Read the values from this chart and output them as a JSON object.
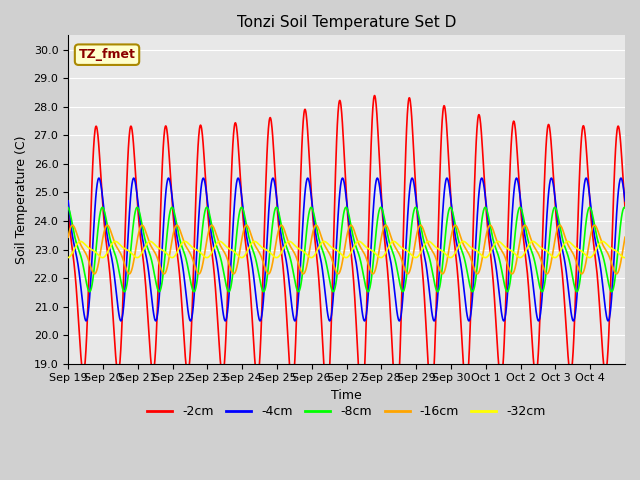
{
  "title": "Tonzi Soil Temperature Set D",
  "xlabel": "Time",
  "ylabel": "Soil Temperature (C)",
  "ylim": [
    19.0,
    30.5
  ],
  "yticks": [
    19.0,
    20.0,
    21.0,
    22.0,
    23.0,
    24.0,
    25.0,
    26.0,
    27.0,
    28.0,
    29.0,
    30.0
  ],
  "fig_bg_color": "#d0d0d0",
  "plot_bg_color": "#e8e8e8",
  "series_colors": [
    "red",
    "blue",
    "lime",
    "orange",
    "yellow"
  ],
  "series_labels": [
    "-2cm",
    "-4cm",
    "-8cm",
    "-16cm",
    "-32cm"
  ],
  "annotation_text": "TZ_fmet",
  "annotation_bg": "#ffffcc",
  "annotation_border": "#aa8800",
  "n_days": 16,
  "mean_temp": 23.0,
  "amps": [
    3.8,
    2.2,
    1.3,
    0.75,
    0.25
  ],
  "phase_shifts_days": [
    0.0,
    0.08,
    0.18,
    0.32,
    0.55
  ],
  "trend_slope": 0.0,
  "tick_labels": [
    "Sep 19",
    "Sep 20",
    "Sep 21",
    "Sep 22",
    "Sep 23",
    "Sep 24",
    "Sep 25",
    "Sep 26",
    "Sep 27",
    "Sep 28",
    "Sep 29",
    "Sep 30",
    "Oct 1",
    "Oct 2",
    "Oct 3",
    "Oct 4"
  ],
  "grid_color": "white",
  "linewidth": 1.2,
  "legend_fontsize": 9,
  "title_fontsize": 11,
  "axis_fontsize": 9,
  "tick_fontsize": 8
}
